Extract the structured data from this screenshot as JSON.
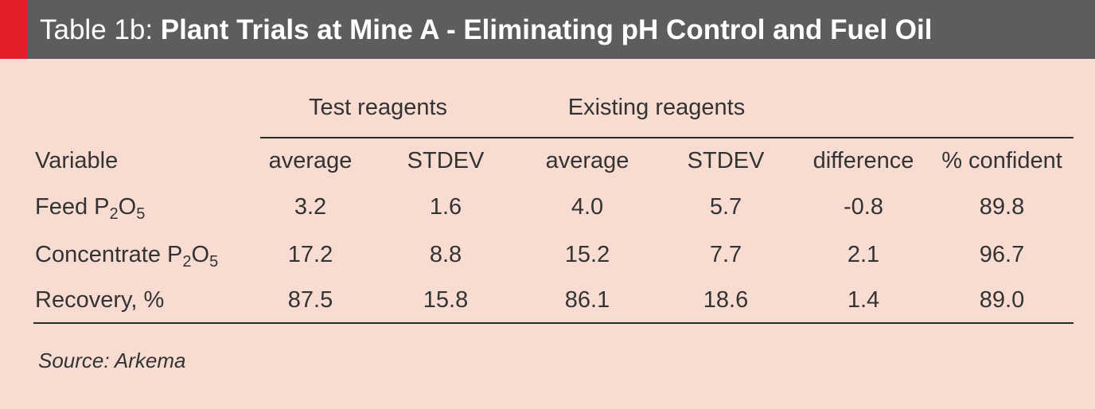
{
  "title": {
    "prefix": "Table 1b: ",
    "main": "Plant Trials at Mine A - Eliminating pH Control and Fuel Oil"
  },
  "groups": {
    "test": "Test reagents",
    "existing": "Existing reagents"
  },
  "columns": [
    "Variable",
    "average",
    "STDEV",
    "average",
    "STDEV",
    "difference",
    "% confident"
  ],
  "rows": [
    {
      "var_main": "Feed P",
      "sub1": "2",
      "mid": "O",
      "sub2": "5",
      "values": [
        "3.2",
        "1.6",
        "4.0",
        "5.7",
        "-0.8",
        "89.8"
      ]
    },
    {
      "var_main": "Concentrate P",
      "sub1": "2",
      "mid": "O",
      "sub2": "5",
      "values": [
        "17.2",
        "8.8",
        "15.2",
        "7.7",
        "2.1",
        "96.7"
      ]
    },
    {
      "var_main": "Recovery, %",
      "sub1": "",
      "mid": "",
      "sub2": "",
      "values": [
        "87.5",
        "15.8",
        "86.1",
        "18.6",
        "1.4",
        "89.0"
      ]
    }
  ],
  "source": "Source: Arkema",
  "colors": {
    "background": "#f9dcd1",
    "header": "#5c5d5f",
    "accent": "#e41e2a"
  }
}
